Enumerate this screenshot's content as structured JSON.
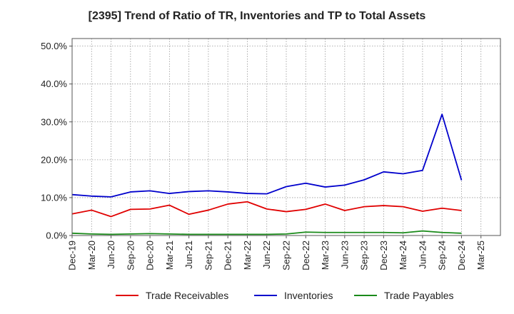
{
  "chart_data": {
    "type": "line",
    "title": "[2395]  Trend of Ratio of TR, Inventories and TP to Total Assets",
    "xlabel": "",
    "ylabel": "",
    "x": [
      "Dec-19",
      "Mar-20",
      "Jun-20",
      "Sep-20",
      "Dec-20",
      "Mar-21",
      "Jun-21",
      "Sep-21",
      "Dec-21",
      "Mar-22",
      "Jun-22",
      "Sep-22",
      "Dec-22",
      "Mar-23",
      "Jun-23",
      "Sep-23",
      "Dec-23",
      "Mar-24",
      "Jun-24",
      "Sep-24",
      "Dec-24",
      "Mar-25"
    ],
    "ylim": [
      0,
      52
    ],
    "yticks": [
      0,
      10,
      20,
      30,
      40,
      50
    ],
    "ytick_labels": [
      "0.0%",
      "10.0%",
      "20.0%",
      "30.0%",
      "40.0%",
      "50.0%"
    ],
    "grid": true,
    "legend_position": "bottom",
    "series": [
      {
        "name": "Trade Receivables",
        "color": "#e00000",
        "values": [
          5.7,
          6.7,
          5.0,
          6.9,
          7.0,
          8.0,
          5.6,
          6.7,
          8.3,
          8.9,
          7.0,
          6.3,
          6.9,
          8.3,
          6.6,
          7.6,
          7.9,
          7.6,
          6.4,
          7.2,
          6.6,
          null
        ]
      },
      {
        "name": "Inventories",
        "color": "#0000cc",
        "values": [
          10.8,
          10.4,
          10.2,
          11.5,
          11.8,
          11.1,
          11.6,
          11.8,
          11.5,
          11.1,
          11.0,
          12.9,
          13.8,
          12.8,
          13.3,
          14.7,
          16.8,
          16.3,
          17.2,
          32.0,
          14.6,
          null
        ]
      },
      {
        "name": "Trade Payables",
        "color": "#1a8a1a",
        "values": [
          0.6,
          0.4,
          0.3,
          0.4,
          0.5,
          0.4,
          0.3,
          0.3,
          0.3,
          0.3,
          0.3,
          0.4,
          0.9,
          0.8,
          0.8,
          0.8,
          0.8,
          0.7,
          1.2,
          0.8,
          0.6,
          null
        ]
      }
    ]
  }
}
